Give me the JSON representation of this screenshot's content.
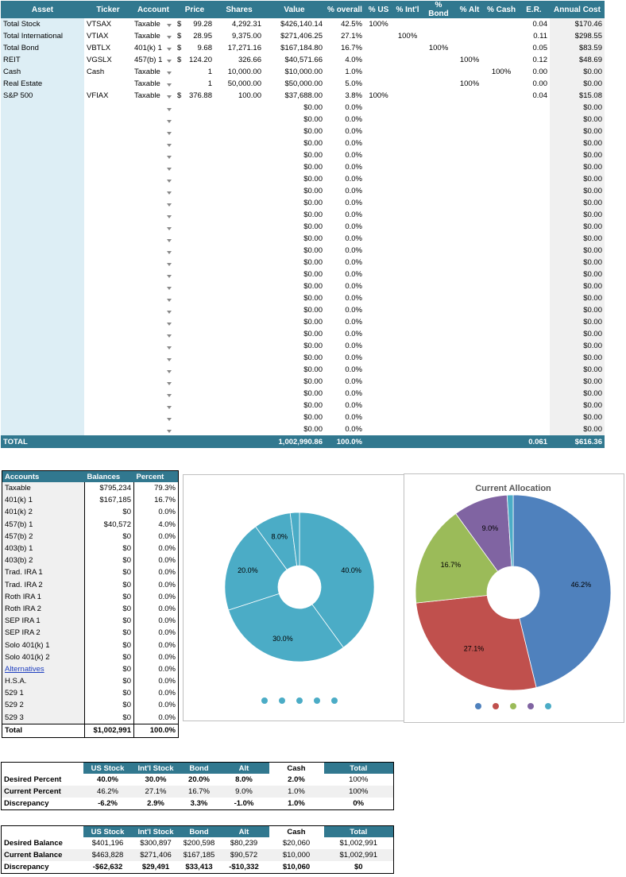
{
  "asset_table": {
    "headers": [
      "Asset",
      "Ticker",
      "Account",
      "Price",
      "Shares",
      "Value",
      "% overall",
      "% US",
      "% Int'l",
      "% Bond",
      "% Alt",
      "% Cash",
      "E.R.",
      "Annual Cost"
    ],
    "rows": [
      {
        "asset": "Total Stock",
        "ticker": "VTSAX",
        "account": "Taxable",
        "price_sym": "$",
        "price": "99.28",
        "shares": "4,292.31",
        "value": "$426,140.14",
        "overall": "42.5%",
        "us": "100%",
        "intl": "",
        "bond": "",
        "alt": "",
        "cash": "",
        "er": "0.04",
        "cost": "$170.46"
      },
      {
        "asset": "Total International",
        "ticker": "VTIAX",
        "account": "Taxable",
        "price_sym": "$",
        "price": "28.95",
        "shares": "9,375.00",
        "value": "$271,406.25",
        "overall": "27.1%",
        "us": "",
        "intl": "100%",
        "bond": "",
        "alt": "",
        "cash": "",
        "er": "0.11",
        "cost": "$298.55"
      },
      {
        "asset": "Total Bond",
        "ticker": "VBTLX",
        "account": "401(k) 1",
        "price_sym": "$",
        "price": "9.68",
        "shares": "17,271.16",
        "value": "$167,184.80",
        "overall": "16.7%",
        "us": "",
        "intl": "",
        "bond": "100%",
        "alt": "",
        "cash": "",
        "er": "0.05",
        "cost": "$83.59"
      },
      {
        "asset": "REIT",
        "ticker": "VGSLX",
        "account": "457(b) 1",
        "price_sym": "$",
        "price": "124.20",
        "shares": "326.66",
        "value": "$40,571.66",
        "overall": "4.0%",
        "us": "",
        "intl": "",
        "bond": "",
        "alt": "100%",
        "cash": "",
        "er": "0.12",
        "cost": "$48.69"
      },
      {
        "asset": "Cash",
        "ticker": "Cash",
        "account": "Taxable",
        "price_sym": "",
        "price": "1",
        "shares": "10,000.00",
        "value": "$10,000.00",
        "overall": "1.0%",
        "us": "",
        "intl": "",
        "bond": "",
        "alt": "",
        "cash": "100%",
        "er": "0.00",
        "cost": "$0.00"
      },
      {
        "asset": "Real Estate",
        "ticker": "",
        "account": "Taxable",
        "price_sym": "",
        "price": "1",
        "shares": "50,000.00",
        "value": "$50,000.00",
        "overall": "5.0%",
        "us": "",
        "intl": "",
        "bond": "",
        "alt": "100%",
        "cash": "",
        "er": "0.00",
        "cost": "$0.00"
      },
      {
        "asset": "S&P 500",
        "ticker": "VFIAX",
        "account": "Taxable",
        "price_sym": "$",
        "price": "376.88",
        "shares": "100.00",
        "value": "$37,688.00",
        "overall": "3.8%",
        "us": "100%",
        "intl": "",
        "bond": "",
        "alt": "",
        "cash": "",
        "er": "0.04",
        "cost": "$15.08"
      }
    ],
    "empty_row": {
      "value": "$0.00",
      "overall": "0.0%",
      "cost": "$0.00"
    },
    "empty_row_count": 28,
    "total": {
      "label": "TOTAL",
      "value": "1,002,990.86",
      "overall": "100.0%",
      "er": "0.061",
      "cost": "$616.36"
    }
  },
  "accounts": {
    "headers": [
      "Accounts",
      "Balances",
      "Percent"
    ],
    "rows": [
      {
        "name": "Taxable",
        "balance": "$795,234",
        "percent": "79.3%"
      },
      {
        "name": "401(k) 1",
        "balance": "$167,185",
        "percent": "16.7%"
      },
      {
        "name": "401(k) 2",
        "balance": "$0",
        "percent": "0.0%"
      },
      {
        "name": "457(b) 1",
        "balance": "$40,572",
        "percent": "4.0%"
      },
      {
        "name": "457(b) 2",
        "balance": "$0",
        "percent": "0.0%"
      },
      {
        "name": "403(b) 1",
        "balance": "$0",
        "percent": "0.0%"
      },
      {
        "name": "403(b) 2",
        "balance": "$0",
        "percent": "0.0%"
      },
      {
        "name": "Trad. IRA 1",
        "balance": "$0",
        "percent": "0.0%"
      },
      {
        "name": "Trad. IRA 2",
        "balance": "$0",
        "percent": "0.0%"
      },
      {
        "name": "Roth IRA 1",
        "balance": "$0",
        "percent": "0.0%"
      },
      {
        "name": "Roth IRA 2",
        "balance": "$0",
        "percent": "0.0%"
      },
      {
        "name": "SEP IRA 1",
        "balance": "$0",
        "percent": "0.0%"
      },
      {
        "name": "SEP IRA 2",
        "balance": "$0",
        "percent": "0.0%"
      },
      {
        "name": "Solo 401(k) 1",
        "balance": "$0",
        "percent": "0.0%"
      },
      {
        "name": "Solo 401(k) 2",
        "balance": "$0",
        "percent": "0.0%"
      },
      {
        "name": "Alternatives",
        "balance": "$0",
        "percent": "0.0%",
        "link": true
      },
      {
        "name": "H.S.A.",
        "balance": "$0",
        "percent": "0.0%"
      },
      {
        "name": "529 1",
        "balance": "$0",
        "percent": "0.0%"
      },
      {
        "name": "529 2",
        "balance": "$0",
        "percent": "0.0%"
      },
      {
        "name": "529 3",
        "balance": "$0",
        "percent": "0.0%"
      }
    ],
    "total": {
      "name": "Total",
      "balance": "$1,002,991",
      "percent": "100.0%"
    }
  },
  "chart_data": [
    {
      "type": "pie",
      "title": "",
      "categories": [
        "",
        "",
        "",
        "",
        ""
      ],
      "values": [
        40.0,
        30.0,
        20.0,
        8.0,
        2.0
      ],
      "labels": [
        "40.0%",
        "30.0%",
        "20.0%",
        "8.0%",
        ""
      ],
      "colors": [
        "#4bacc6",
        "#4bacc6",
        "#4bacc6",
        "#4bacc6",
        "#4bacc6"
      ],
      "legend": "bottom"
    },
    {
      "type": "pie",
      "title": "Current Allocation",
      "categories": [
        "",
        "",
        "",
        "",
        ""
      ],
      "values": [
        46.2,
        27.1,
        16.7,
        9.0,
        1.0
      ],
      "labels": [
        "46.2%",
        "27.1%",
        "16.7%",
        "9.0%",
        ""
      ],
      "colors": [
        "#4f81bd",
        "#c0504d",
        "#9bbb59",
        "#8064a2",
        "#4bacc6"
      ],
      "legend": "bottom"
    }
  ],
  "percent_table": {
    "headers": [
      "",
      "US Stock",
      "Int'l Stock",
      "Bond",
      "Alt",
      "Cash",
      "Total"
    ],
    "rows": [
      {
        "label": "Desired Percent",
        "values": [
          "40.0%",
          "30.0%",
          "20.0%",
          "8.0%",
          "2.0%",
          "100%"
        ]
      },
      {
        "label": "Current Percent",
        "values": [
          "46.2%",
          "27.1%",
          "16.7%",
          "9.0%",
          "1.0%",
          "100%"
        ]
      },
      {
        "label": "Discrepancy",
        "values": [
          "-6.2%",
          "2.9%",
          "3.3%",
          "-1.0%",
          "1.0%",
          "0%"
        ]
      }
    ]
  },
  "balance_table": {
    "headers": [
      "",
      "US Stock",
      "Int'l Stock",
      "Bond",
      "Alt",
      "Cash",
      "Total"
    ],
    "rows": [
      {
        "label": "Desired Balance",
        "values": [
          "$401,196",
          "$300,897",
          "$200,598",
          "$80,239",
          "$20,060",
          "$1,002,991"
        ]
      },
      {
        "label": "Current Balance",
        "values": [
          "$463,828",
          "$271,406",
          "$167,185",
          "$90,572",
          "$10,000",
          "$1,002,991"
        ]
      },
      {
        "label": "Discrepancy",
        "values": [
          "-$62,632",
          "$29,491",
          "$33,413",
          "-$10,332",
          "$10,060",
          "$0"
        ]
      }
    ]
  }
}
